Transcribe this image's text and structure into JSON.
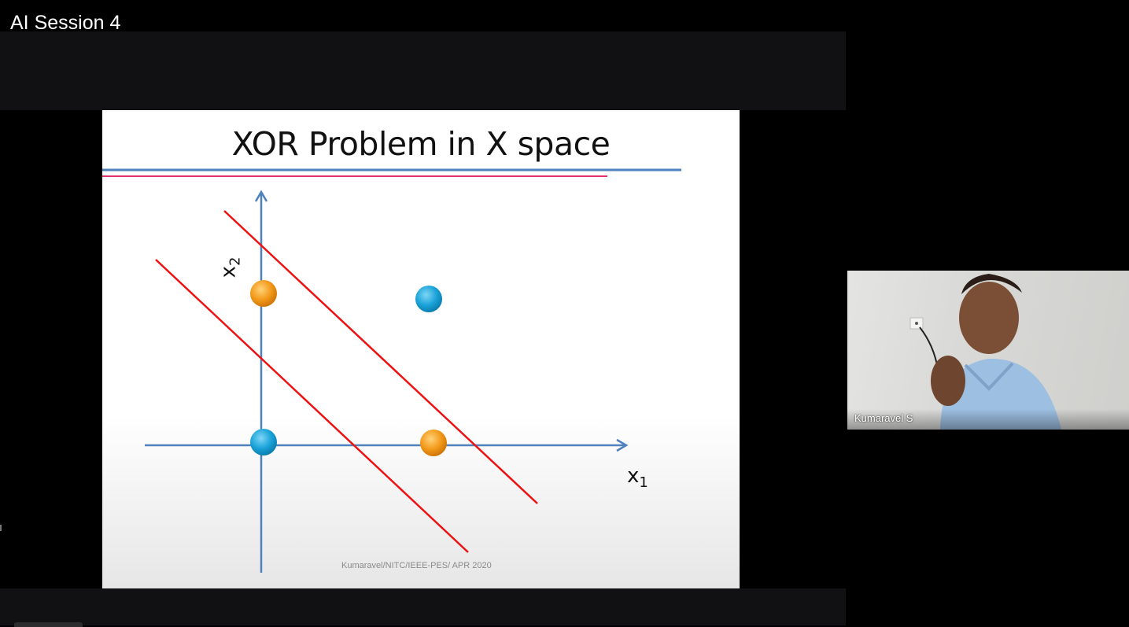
{
  "window": {
    "title": "AI Session 4"
  },
  "slide": {
    "title": "XOR Problem in X space",
    "x_axis_label": "x",
    "x_axis_subscript": "1",
    "y_axis_label": "x",
    "y_axis_subscript": "2",
    "footer": "Kumaravel/NITC/IEEE-PES/ APR 2020",
    "points": [
      {
        "x": 0,
        "y": 0,
        "class": "blue"
      },
      {
        "x": 1,
        "y": 1,
        "class": "blue"
      },
      {
        "x": 1,
        "y": 0,
        "class": "orange"
      },
      {
        "x": 0,
        "y": 1,
        "class": "orange"
      }
    ],
    "colors": {
      "axis": "#4f81bd",
      "boundary": "#ee1111",
      "blue_point": "#1aa3d9",
      "orange_point": "#f39a1a",
      "title_underline_blue": "#4f81bd",
      "title_underline_pink": "#e0356a"
    }
  },
  "participant": {
    "name": "Kumaravel S"
  }
}
